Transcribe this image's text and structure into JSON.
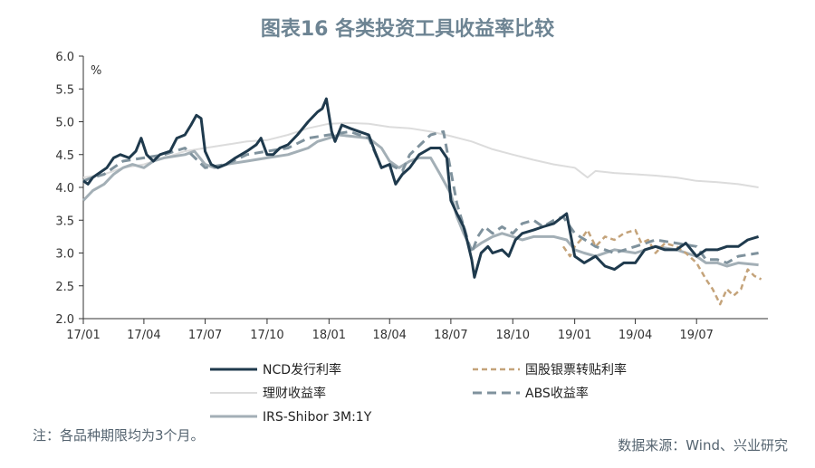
{
  "title": "图表16  各类投资工具收益率比较",
  "note": "注：各品种期限均为3个月。",
  "source": "数据来源：Wind、兴业研究",
  "chart_data": {
    "type": "line",
    "ylabel": "%",
    "ylim": [
      2.0,
      6.0
    ],
    "yticks": [
      "2.0",
      "2.5",
      "3.0",
      "3.5",
      "4.0",
      "4.5",
      "5.0",
      "5.5",
      "6.0"
    ],
    "xlim": [
      "2017-01-01",
      "2019-10-15"
    ],
    "xticks": [
      {
        "date": "2017-01-01",
        "label": "17/01"
      },
      {
        "date": "2017-04-01",
        "label": "17/04"
      },
      {
        "date": "2017-07-01",
        "label": "17/07"
      },
      {
        "date": "2017-10-01",
        "label": "17/10"
      },
      {
        "date": "2018-01-01",
        "label": "18/01"
      },
      {
        "date": "2018-04-01",
        "label": "18/04"
      },
      {
        "date": "2018-07-01",
        "label": "18/07"
      },
      {
        "date": "2018-10-01",
        "label": "18/10"
      },
      {
        "date": "2019-01-01",
        "label": "19/01"
      },
      {
        "date": "2019-04-01",
        "label": "19/04"
      },
      {
        "date": "2019-07-01",
        "label": "19/07"
      }
    ],
    "grid": false,
    "legend_position": "bottom",
    "series": [
      {
        "name": "NCD发行利率",
        "color": "#1f3a4d",
        "dash": "solid",
        "width": 3,
        "points": [
          [
            "2017-01-01",
            4.1
          ],
          [
            "2017-01-08",
            4.05
          ],
          [
            "2017-01-15",
            4.15
          ],
          [
            "2017-01-22",
            4.2
          ],
          [
            "2017-02-05",
            4.3
          ],
          [
            "2017-02-15",
            4.45
          ],
          [
            "2017-02-25",
            4.5
          ],
          [
            "2017-03-10",
            4.45
          ],
          [
            "2017-03-20",
            4.55
          ],
          [
            "2017-03-28",
            4.75
          ],
          [
            "2017-04-05",
            4.5
          ],
          [
            "2017-04-15",
            4.4
          ],
          [
            "2017-04-25",
            4.5
          ],
          [
            "2017-05-10",
            4.55
          ],
          [
            "2017-05-20",
            4.75
          ],
          [
            "2017-06-01",
            4.8
          ],
          [
            "2017-06-10",
            4.95
          ],
          [
            "2017-06-18",
            5.1
          ],
          [
            "2017-06-25",
            5.05
          ],
          [
            "2017-07-01",
            4.55
          ],
          [
            "2017-07-10",
            4.35
          ],
          [
            "2017-07-20",
            4.3
          ],
          [
            "2017-08-01",
            4.35
          ],
          [
            "2017-08-15",
            4.45
          ],
          [
            "2017-09-01",
            4.55
          ],
          [
            "2017-09-15",
            4.65
          ],
          [
            "2017-09-22",
            4.75
          ],
          [
            "2017-10-01",
            4.5
          ],
          [
            "2017-10-10",
            4.5
          ],
          [
            "2017-10-20",
            4.6
          ],
          [
            "2017-11-01",
            4.65
          ],
          [
            "2017-11-15",
            4.8
          ],
          [
            "2017-12-01",
            5.0
          ],
          [
            "2017-12-15",
            5.15
          ],
          [
            "2017-12-22",
            5.2
          ],
          [
            "2017-12-28",
            5.35
          ],
          [
            "2018-01-05",
            4.85
          ],
          [
            "2018-01-10",
            4.7
          ],
          [
            "2018-01-20",
            4.95
          ],
          [
            "2018-02-01",
            4.9
          ],
          [
            "2018-02-15",
            4.85
          ],
          [
            "2018-03-01",
            4.8
          ],
          [
            "2018-03-10",
            4.55
          ],
          [
            "2018-03-20",
            4.3
          ],
          [
            "2018-04-01",
            4.35
          ],
          [
            "2018-04-10",
            4.05
          ],
          [
            "2018-04-20",
            4.2
          ],
          [
            "2018-05-01",
            4.3
          ],
          [
            "2018-05-15",
            4.5
          ],
          [
            "2018-06-01",
            4.6
          ],
          [
            "2018-06-15",
            4.6
          ],
          [
            "2018-06-25",
            4.45
          ],
          [
            "2018-07-01",
            3.8
          ],
          [
            "2018-07-10",
            3.6
          ],
          [
            "2018-07-20",
            3.4
          ],
          [
            "2018-07-25",
            3.2
          ],
          [
            "2018-08-01",
            2.9
          ],
          [
            "2018-08-05",
            2.63
          ],
          [
            "2018-08-15",
            3.0
          ],
          [
            "2018-08-25",
            3.1
          ],
          [
            "2018-09-01",
            3.0
          ],
          [
            "2018-09-15",
            3.05
          ],
          [
            "2018-09-25",
            2.95
          ],
          [
            "2018-10-05",
            3.2
          ],
          [
            "2018-10-15",
            3.3
          ],
          [
            "2018-11-01",
            3.35
          ],
          [
            "2018-11-15",
            3.4
          ],
          [
            "2018-12-01",
            3.45
          ],
          [
            "2018-12-20",
            3.6
          ],
          [
            "2019-01-01",
            2.95
          ],
          [
            "2019-01-15",
            2.85
          ],
          [
            "2019-02-01",
            2.95
          ],
          [
            "2019-02-15",
            2.8
          ],
          [
            "2019-03-01",
            2.75
          ],
          [
            "2019-03-15",
            2.85
          ],
          [
            "2019-04-01",
            2.85
          ],
          [
            "2019-04-15",
            3.05
          ],
          [
            "2019-05-01",
            3.1
          ],
          [
            "2019-05-15",
            3.05
          ],
          [
            "2019-06-01",
            3.05
          ],
          [
            "2019-06-15",
            3.15
          ],
          [
            "2019-07-01",
            2.95
          ],
          [
            "2019-07-15",
            3.05
          ],
          [
            "2019-08-01",
            3.05
          ],
          [
            "2019-08-15",
            3.1
          ],
          [
            "2019-09-01",
            3.1
          ],
          [
            "2019-09-15",
            3.2
          ],
          [
            "2019-10-01",
            3.25
          ]
        ]
      },
      {
        "name": "国股银票转贴利率",
        "color": "#c4a37a",
        "dash": "6 4",
        "width": 2.5,
        "points": [
          [
            "2018-12-15",
            3.1
          ],
          [
            "2018-12-25",
            2.95
          ],
          [
            "2019-01-01",
            3.1
          ],
          [
            "2019-01-10",
            3.2
          ],
          [
            "2019-01-20",
            3.35
          ],
          [
            "2019-02-01",
            3.1
          ],
          [
            "2019-02-15",
            3.25
          ],
          [
            "2019-03-01",
            3.2
          ],
          [
            "2019-03-15",
            3.3
          ],
          [
            "2019-04-01",
            3.35
          ],
          [
            "2019-04-10",
            3.15
          ],
          [
            "2019-04-20",
            3.2
          ],
          [
            "2019-05-01",
            3.0
          ],
          [
            "2019-05-15",
            3.15
          ],
          [
            "2019-06-01",
            3.1
          ],
          [
            "2019-06-15",
            3.0
          ],
          [
            "2019-07-01",
            2.85
          ],
          [
            "2019-07-15",
            2.6
          ],
          [
            "2019-07-25",
            2.45
          ],
          [
            "2019-08-05",
            2.22
          ],
          [
            "2019-08-15",
            2.45
          ],
          [
            "2019-08-25",
            2.35
          ],
          [
            "2019-09-05",
            2.45
          ],
          [
            "2019-09-15",
            2.75
          ],
          [
            "2019-09-25",
            2.65
          ],
          [
            "2019-10-05",
            2.6
          ]
        ]
      },
      {
        "name": "理财收益率",
        "color": "#dcdcdc",
        "dash": "solid",
        "width": 2,
        "points": [
          [
            "2017-01-01",
            4.15
          ],
          [
            "2017-02-01",
            4.2
          ],
          [
            "2017-03-01",
            4.3
          ],
          [
            "2017-04-01",
            4.35
          ],
          [
            "2017-05-01",
            4.45
          ],
          [
            "2017-06-01",
            4.55
          ],
          [
            "2017-07-01",
            4.6
          ],
          [
            "2017-08-01",
            4.65
          ],
          [
            "2017-09-01",
            4.7
          ],
          [
            "2017-10-01",
            4.72
          ],
          [
            "2017-11-01",
            4.8
          ],
          [
            "2017-12-01",
            4.9
          ],
          [
            "2018-01-01",
            4.97
          ],
          [
            "2018-02-01",
            4.98
          ],
          [
            "2018-03-01",
            4.97
          ],
          [
            "2018-04-01",
            4.92
          ],
          [
            "2018-05-01",
            4.9
          ],
          [
            "2018-06-01",
            4.85
          ],
          [
            "2018-07-01",
            4.78
          ],
          [
            "2018-08-01",
            4.7
          ],
          [
            "2018-09-01",
            4.58
          ],
          [
            "2018-10-01",
            4.5
          ],
          [
            "2018-11-01",
            4.42
          ],
          [
            "2018-12-01",
            4.35
          ],
          [
            "2019-01-01",
            4.3
          ],
          [
            "2019-01-20",
            4.15
          ],
          [
            "2019-02-01",
            4.25
          ],
          [
            "2019-03-01",
            4.22
          ],
          [
            "2019-04-01",
            4.2
          ],
          [
            "2019-05-01",
            4.18
          ],
          [
            "2019-06-01",
            4.15
          ],
          [
            "2019-07-01",
            4.1
          ],
          [
            "2019-08-01",
            4.08
          ],
          [
            "2019-09-01",
            4.05
          ],
          [
            "2019-10-01",
            4.0
          ]
        ]
      },
      {
        "name": "ABS收益率",
        "color": "#7f929d",
        "dash": "10 6",
        "width": 3,
        "points": [
          [
            "2017-01-01",
            4.1
          ],
          [
            "2017-01-15",
            4.15
          ],
          [
            "2017-02-01",
            4.2
          ],
          [
            "2017-03-01",
            4.4
          ],
          [
            "2017-04-01",
            4.45
          ],
          [
            "2017-05-01",
            4.5
          ],
          [
            "2017-06-01",
            4.6
          ],
          [
            "2017-07-01",
            4.3
          ],
          [
            "2017-08-01",
            4.35
          ],
          [
            "2017-09-01",
            4.5
          ],
          [
            "2017-10-01",
            4.55
          ],
          [
            "2017-11-01",
            4.6
          ],
          [
            "2017-12-01",
            4.75
          ],
          [
            "2018-01-01",
            4.8
          ],
          [
            "2018-02-01",
            4.85
          ],
          [
            "2018-03-01",
            4.75
          ],
          [
            "2018-03-20",
            4.3
          ],
          [
            "2018-04-01",
            4.35
          ],
          [
            "2018-04-20",
            4.25
          ],
          [
            "2018-05-01",
            4.5
          ],
          [
            "2018-06-01",
            4.8
          ],
          [
            "2018-06-20",
            4.85
          ],
          [
            "2018-07-10",
            3.75
          ],
          [
            "2018-08-01",
            3.0
          ],
          [
            "2018-08-10",
            3.25
          ],
          [
            "2018-08-20",
            3.4
          ],
          [
            "2018-09-01",
            3.3
          ],
          [
            "2018-09-15",
            3.4
          ],
          [
            "2018-10-01",
            3.3
          ],
          [
            "2018-10-15",
            3.45
          ],
          [
            "2018-11-01",
            3.5
          ],
          [
            "2018-11-15",
            3.4
          ],
          [
            "2018-12-01",
            3.5
          ],
          [
            "2018-12-15",
            3.55
          ],
          [
            "2019-01-01",
            3.3
          ],
          [
            "2019-02-01",
            3.1
          ],
          [
            "2019-03-01",
            3.0
          ],
          [
            "2019-04-01",
            3.1
          ],
          [
            "2019-05-01",
            3.2
          ],
          [
            "2019-06-01",
            3.15
          ],
          [
            "2019-07-01",
            3.1
          ],
          [
            "2019-07-15",
            2.9
          ],
          [
            "2019-08-01",
            2.9
          ],
          [
            "2019-08-15",
            2.85
          ],
          [
            "2019-09-01",
            2.95
          ],
          [
            "2019-10-01",
            3.0
          ]
        ]
      },
      {
        "name": "IRS-Shibor 3M:1Y",
        "color": "#a3afb6",
        "dash": "solid",
        "width": 3,
        "points": [
          [
            "2017-01-01",
            3.8
          ],
          [
            "2017-01-15",
            3.95
          ],
          [
            "2017-02-01",
            4.05
          ],
          [
            "2017-02-15",
            4.2
          ],
          [
            "2017-03-01",
            4.3
          ],
          [
            "2017-03-15",
            4.35
          ],
          [
            "2017-04-01",
            4.3
          ],
          [
            "2017-04-15",
            4.4
          ],
          [
            "2017-05-01",
            4.45
          ],
          [
            "2017-06-01",
            4.5
          ],
          [
            "2017-06-15",
            4.55
          ],
          [
            "2017-07-01",
            4.35
          ],
          [
            "2017-07-15",
            4.3
          ],
          [
            "2017-08-01",
            4.35
          ],
          [
            "2017-09-01",
            4.4
          ],
          [
            "2017-10-01",
            4.45
          ],
          [
            "2017-11-01",
            4.5
          ],
          [
            "2017-12-01",
            4.6
          ],
          [
            "2017-12-15",
            4.7
          ],
          [
            "2018-01-01",
            4.75
          ],
          [
            "2018-01-15",
            4.8
          ],
          [
            "2018-02-01",
            4.78
          ],
          [
            "2018-03-01",
            4.75
          ],
          [
            "2018-03-20",
            4.6
          ],
          [
            "2018-04-01",
            4.4
          ],
          [
            "2018-04-15",
            4.3
          ],
          [
            "2018-05-01",
            4.4
          ],
          [
            "2018-05-15",
            4.45
          ],
          [
            "2018-06-01",
            4.45
          ],
          [
            "2018-06-15",
            4.2
          ],
          [
            "2018-07-01",
            3.9
          ],
          [
            "2018-07-10",
            3.55
          ],
          [
            "2018-07-20",
            3.3
          ],
          [
            "2018-08-01",
            3.05
          ],
          [
            "2018-08-15",
            3.15
          ],
          [
            "2018-09-01",
            3.25
          ],
          [
            "2018-09-15",
            3.3
          ],
          [
            "2018-10-01",
            3.25
          ],
          [
            "2018-10-15",
            3.2
          ],
          [
            "2018-11-01",
            3.25
          ],
          [
            "2018-12-01",
            3.25
          ],
          [
            "2018-12-20",
            3.2
          ],
          [
            "2019-01-01",
            3.05
          ],
          [
            "2019-01-15",
            3.0
          ],
          [
            "2019-02-01",
            2.95
          ],
          [
            "2019-03-01",
            3.05
          ],
          [
            "2019-04-01",
            3.0
          ],
          [
            "2019-05-01",
            3.1
          ],
          [
            "2019-06-01",
            3.05
          ],
          [
            "2019-07-01",
            2.95
          ],
          [
            "2019-07-15",
            2.85
          ],
          [
            "2019-08-01",
            2.85
          ],
          [
            "2019-08-15",
            2.8
          ],
          [
            "2019-09-01",
            2.85
          ],
          [
            "2019-10-01",
            2.82
          ]
        ]
      }
    ]
  }
}
